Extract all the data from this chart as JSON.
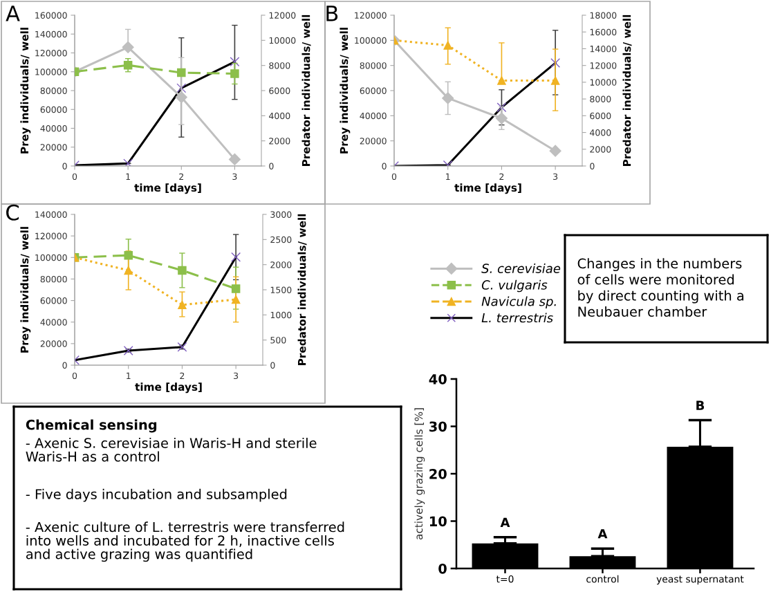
{
  "chart_data": [
    {
      "type": "line",
      "title": "A",
      "x": [
        0,
        1,
        2,
        3
      ],
      "xlim": [
        0,
        3.5
      ],
      "xticks": [
        0,
        1,
        2,
        3
      ],
      "ylim": [
        0,
        160000
      ],
      "yticks": [
        0,
        20000,
        40000,
        60000,
        80000,
        100000,
        120000,
        140000,
        160000
      ],
      "y2lim": [
        0,
        12000
      ],
      "y2ticks": [
        0,
        2000,
        4000,
        6000,
        8000,
        10000,
        12000
      ],
      "xlabel": "time [days]",
      "ylabel": "Prey individuals/ well",
      "y2label": "Predator individuals/ well",
      "grid": false,
      "legend": false,
      "series": [
        {
          "color": "#bfbfbf",
          "marker": "diamond",
          "line_style": "solid",
          "values": [
            100000,
            126000,
            73000,
            7000
          ],
          "errors": [
            null,
            [
              126000,
              145000
            ],
            [
              44000,
              115000
            ],
            3000
          ]
        },
        {
          "color": "#8cbf4a",
          "marker": "square",
          "line_style": "dashed",
          "values": [
            100000,
            107000,
            99000,
            98000
          ],
          "errors": [
            null,
            [
              100000,
              114000
            ],
            null,
            [
              87000,
              109000
            ]
          ]
        },
        {
          "color": "#000000",
          "marker": "cross",
          "line_style": "solid",
          "axis": "y2",
          "values": [
            50,
            200,
            6200,
            8300
          ],
          "errors": [
            null,
            null,
            [
              2300,
              10200
            ],
            [
              5300,
              11200
            ]
          ]
        }
      ]
    },
    {
      "type": "line",
      "title": "B",
      "x": [
        0,
        1,
        2,
        3
      ],
      "xlim": [
        0,
        3.5
      ],
      "xticks": [
        0,
        1,
        2,
        3
      ],
      "ylim": [
        0,
        120000
      ],
      "yticks": [
        0,
        20000,
        40000,
        60000,
        80000,
        100000,
        120000
      ],
      "y2lim": [
        0,
        18000
      ],
      "y2ticks": [
        0,
        2000,
        4000,
        6000,
        8000,
        10000,
        12000,
        14000,
        16000,
        18000
      ],
      "xlabel": "time [days]",
      "ylabel": "Prey individuals/ well",
      "y2label": "Predator individuals/ well",
      "grid": false,
      "legend": false,
      "series": [
        {
          "color": "#bfbfbf",
          "marker": "diamond",
          "line_style": "solid",
          "values": [
            100000,
            54000,
            38000,
            12000
          ],
          "errors": [
            null,
            [
              41000,
              67000
            ],
            [
              29000,
              47000
            ],
            null
          ]
        },
        {
          "color": "#f0b323",
          "marker": "triangle",
          "line_style": "dotted",
          "values": [
            100000,
            96000,
            68000,
            68000
          ],
          "errors": [
            null,
            [
              81000,
              110000
            ],
            [
              68000,
              98000
            ],
            [
              44000,
              93000
            ]
          ]
        },
        {
          "color": "#000000",
          "marker": "cross",
          "line_style": "solid",
          "axis": "y2",
          "values": [
            0,
            100,
            7000,
            12300
          ],
          "errors": [
            null,
            null,
            [
              4900,
              9100
            ],
            [
              8500,
              16200
            ]
          ]
        }
      ]
    },
    {
      "type": "line",
      "title": "C",
      "x": [
        0,
        1,
        2,
        3
      ],
      "xlim": [
        0,
        3.5
      ],
      "xticks": [
        0,
        1,
        2,
        3
      ],
      "ylim": [
        0,
        140000
      ],
      "yticks": [
        0,
        20000,
        40000,
        60000,
        80000,
        100000,
        120000,
        140000
      ],
      "y2lim": [
        0,
        3000
      ],
      "y2ticks": [
        0,
        500,
        1000,
        1500,
        2000,
        2500,
        3000
      ],
      "xlabel": "time [days]",
      "ylabel": "Prey individuals/ well",
      "y2label": "Predator individuals/ well",
      "grid": false,
      "legend": "right",
      "series": [
        {
          "name": "S. cerevisiae",
          "color": "#bfbfbf",
          "marker": "diamond",
          "line_style": "solid",
          "values": [
            null,
            null,
            null,
            null
          ]
        },
        {
          "name": "C. vulgaris",
          "color": "#8cbf4a",
          "marker": "square",
          "line_style": "dashed",
          "values": [
            100000,
            102000,
            88000,
            71000
          ],
          "errors": [
            null,
            [
              87000,
              117000
            ],
            [
              72000,
              104000
            ],
            [
              52000,
              91000
            ]
          ]
        },
        {
          "name": "Navicula sp.",
          "color": "#f0b323",
          "marker": "triangle",
          "line_style": "dotted",
          "values": [
            100000,
            88000,
            56000,
            61000
          ],
          "errors": [
            null,
            [
              70000,
              106000
            ],
            [
              45000,
              68000
            ],
            [
              40000,
              82000
            ]
          ]
        },
        {
          "name": "L. terrestris",
          "color": "#000000",
          "marker": "cross",
          "line_style": "solid",
          "axis": "y2",
          "values": [
            100,
            290,
            360,
            2150
          ],
          "errors": [
            null,
            30,
            40,
            [
              1700,
              2600
            ]
          ]
        }
      ]
    },
    {
      "type": "bar",
      "categories": [
        "t=0",
        "control",
        "yeast supernatant"
      ],
      "values": [
        5.3,
        2.6,
        25.7
      ],
      "errors": [
        [
          5.3,
          6.6
        ],
        [
          2.6,
          4.2
        ],
        [
          25.7,
          31.3
        ]
      ],
      "color": "#000000",
      "ylim": [
        0,
        40
      ],
      "yticks": [
        0,
        10,
        20,
        30,
        40
      ],
      "ylabel": "actively grazing cells [%]",
      "grid": false,
      "annotations": [
        {
          "text": "A",
          "x": "t=0",
          "y": 6.6
        },
        {
          "text": "A",
          "x": "control",
          "y": 4.2
        },
        {
          "text": "B",
          "x": "yeast supernatant",
          "y": 31.3
        }
      ]
    },
    {
      "type": "other",
      "annotations": [
        "Changes in the numbers\nof cells were monitored\nby direct counting with a\nNeubauer chamber"
      ]
    },
    {
      "type": "other",
      "title": "Chemical sensing",
      "annotations": [
        "- Axenic S. cerevisiae in Waris-H and sterile\nWaris-H as a control",
        "- Five days incubation and subsampled",
        "- Axenic culture of L. terrestris were transferred\ninto wells and incubated for 2 h, inactive cells\nand active grazing was quantified"
      ]
    }
  ]
}
